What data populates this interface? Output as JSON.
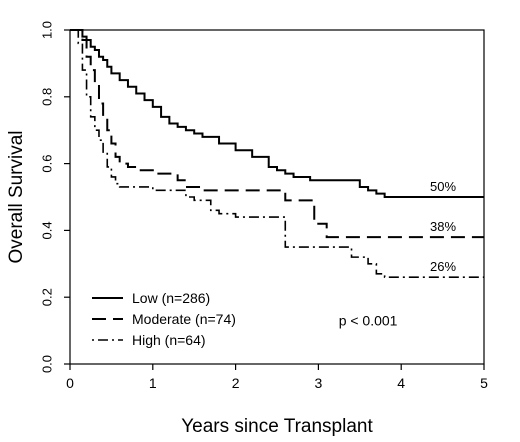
{
  "chart_data": {
    "type": "line",
    "xlabel": "Years since Transplant",
    "ylabel": "Overall Survival",
    "xlim": [
      0,
      5
    ],
    "ylim": [
      0,
      1
    ],
    "x_ticks": [
      0,
      1,
      2,
      3,
      4,
      5
    ],
    "x_tick_labels": [
      "0",
      "1",
      "2",
      "3",
      "4",
      "5"
    ],
    "y_ticks": [
      0,
      0.2,
      0.4,
      0.6,
      0.8,
      1.0
    ],
    "y_tick_labels": [
      "0.0",
      "0.2",
      "0.4",
      "0.6",
      "0.8",
      "1.0"
    ],
    "grid": false,
    "legend_position": "bottom-left",
    "series": [
      {
        "name": "Low (n=286)",
        "line_style": "solid",
        "end_label": "50%",
        "x": [
          0,
          0.1,
          0.15,
          0.2,
          0.25,
          0.3,
          0.35,
          0.4,
          0.45,
          0.5,
          0.6,
          0.7,
          0.8,
          0.9,
          1.0,
          1.1,
          1.2,
          1.3,
          1.4,
          1.5,
          1.6,
          1.8,
          2.0,
          2.2,
          2.4,
          2.5,
          2.6,
          2.7,
          2.9,
          3.0,
          3.2,
          3.5,
          3.6,
          3.7,
          3.8,
          4.0,
          4.5,
          5.0
        ],
        "y": [
          1.0,
          1.0,
          0.98,
          0.97,
          0.95,
          0.94,
          0.92,
          0.91,
          0.89,
          0.87,
          0.85,
          0.83,
          0.81,
          0.79,
          0.77,
          0.74,
          0.72,
          0.71,
          0.7,
          0.69,
          0.68,
          0.66,
          0.64,
          0.62,
          0.59,
          0.58,
          0.57,
          0.56,
          0.55,
          0.55,
          0.55,
          0.53,
          0.52,
          0.51,
          0.5,
          0.5,
          0.5,
          0.5
        ]
      },
      {
        "name": "Moderate (n=74)",
        "line_style": "dashed",
        "end_label": "38%",
        "x": [
          0,
          0.1,
          0.15,
          0.2,
          0.25,
          0.3,
          0.35,
          0.4,
          0.45,
          0.5,
          0.55,
          0.6,
          0.7,
          0.8,
          0.9,
          1.0,
          1.1,
          1.3,
          1.4,
          1.6,
          1.8,
          2.0,
          2.2,
          2.4,
          2.6,
          2.7,
          2.85,
          2.95,
          3.0,
          3.1,
          3.3,
          3.5,
          4.0,
          5.0
        ],
        "y": [
          1.0,
          1.0,
          0.97,
          0.92,
          0.88,
          0.84,
          0.78,
          0.74,
          0.7,
          0.66,
          0.62,
          0.6,
          0.59,
          0.58,
          0.58,
          0.57,
          0.57,
          0.55,
          0.53,
          0.52,
          0.52,
          0.52,
          0.52,
          0.52,
          0.49,
          0.49,
          0.49,
          0.42,
          0.42,
          0.38,
          0.38,
          0.38,
          0.38,
          0.38
        ]
      },
      {
        "name": "High (n=64)",
        "line_style": "dot-dash",
        "end_label": "26%",
        "x": [
          0,
          0.05,
          0.1,
          0.15,
          0.2,
          0.25,
          0.3,
          0.35,
          0.4,
          0.45,
          0.5,
          0.55,
          0.6,
          0.65,
          0.7,
          0.8,
          1.0,
          1.2,
          1.4,
          1.5,
          1.7,
          1.8,
          2.0,
          2.2,
          2.4,
          2.5,
          2.6,
          2.8,
          3.0,
          3.2,
          3.4,
          3.6,
          3.7,
          3.8,
          4.0,
          5.0
        ],
        "y": [
          1.0,
          1.0,
          0.96,
          0.88,
          0.8,
          0.74,
          0.7,
          0.67,
          0.63,
          0.59,
          0.56,
          0.54,
          0.53,
          0.53,
          0.53,
          0.53,
          0.52,
          0.52,
          0.5,
          0.49,
          0.46,
          0.45,
          0.44,
          0.44,
          0.44,
          0.44,
          0.35,
          0.35,
          0.35,
          0.35,
          0.32,
          0.3,
          0.27,
          0.26,
          0.26,
          0.26
        ]
      }
    ],
    "annotations": [
      {
        "text": "p < 0.001",
        "x": 3.6,
        "y": 0.115
      }
    ]
  }
}
